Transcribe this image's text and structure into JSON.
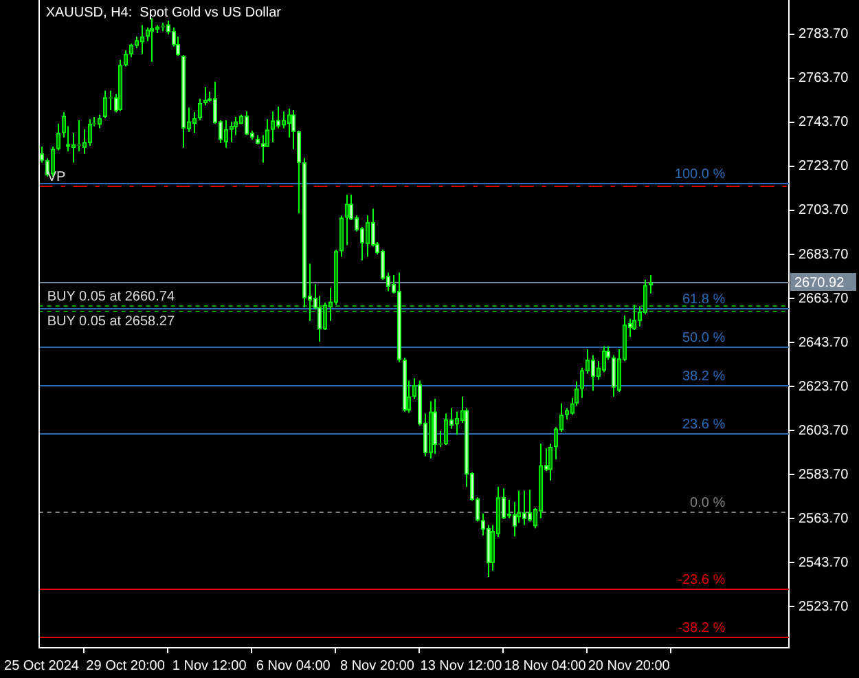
{
  "chart_data": {
    "type": "candlestick",
    "title": "XAUUSD, H4:  Spot Gold vs US Dollar",
    "categories": [
      "25 Oct 2024",
      null,
      null,
      null,
      null,
      null,
      null,
      null,
      null,
      null,
      null,
      null,
      null,
      null,
      null,
      null,
      "29 Oct 20:00",
      null,
      null,
      null,
      null,
      null,
      null,
      null,
      null,
      null,
      null,
      null,
      null,
      null,
      null,
      null,
      "1 Nov 12:00",
      null,
      null,
      null,
      null,
      null,
      null,
      null,
      null,
      null,
      null,
      null,
      null,
      null,
      null,
      null,
      "6 Nov 04:00",
      null,
      null,
      null,
      null,
      null,
      null,
      null,
      null,
      null,
      null,
      null,
      null,
      null,
      null,
      null,
      "8 Nov 20:00",
      null,
      null,
      null,
      null,
      null,
      null,
      null,
      null,
      null,
      null,
      null,
      null,
      null,
      null,
      null,
      "13 Nov 12:00",
      null,
      null,
      null,
      null,
      null,
      null,
      null,
      null,
      null,
      null,
      null,
      null,
      null,
      null,
      null,
      "18 Nov 04:00",
      null,
      null,
      null,
      null,
      null,
      null,
      null,
      null,
      null,
      null,
      null,
      null,
      null,
      null,
      null,
      "20 Nov 20:00",
      null,
      null,
      null,
      null,
      null,
      null,
      null,
      null,
      null,
      null,
      null,
      null,
      null,
      null,
      null,
      null,
      null,
      null,
      null,
      null,
      null,
      null,
      null,
      null,
      null,
      null,
      null,
      null,
      null,
      null
    ],
    "ohlc": [
      [
        2729.5,
        2732.7,
        2725.4,
        2726.4
      ],
      [
        2726.4,
        2727.4,
        2719.1,
        2719.7
      ],
      [
        2720.2,
        2732.7,
        2719.1,
        2731.6
      ],
      [
        2731.6,
        2743.1,
        2731.0,
        2738.9
      ],
      [
        2738.9,
        2748.3,
        2736.8,
        2746.6
      ],
      [
        2733.7,
        2742.0,
        2730.6,
        2732.7
      ],
      [
        2732.2,
        2738.9,
        2725.4,
        2733.7
      ],
      [
        2733.1,
        2744.7,
        2730.6,
        2733.7
      ],
      [
        2732.2,
        2740.6,
        2729.5,
        2734.7
      ],
      [
        2734.3,
        2745.2,
        2733.1,
        2743.1
      ],
      [
        2742.7,
        2746.2,
        2742.0,
        2743.5
      ],
      [
        2742.7,
        2747.2,
        2741.0,
        2745.6
      ],
      [
        2746.2,
        2758.1,
        2745.6,
        2755.0
      ],
      [
        2754.5,
        2758.1,
        2749.3,
        2755.3
      ],
      [
        2755.0,
        2756.6,
        2748.3,
        2748.9
      ],
      [
        2749.3,
        2772.2,
        2748.9,
        2769.7
      ],
      [
        2769.7,
        2776.4,
        2769.1,
        2774.7
      ],
      [
        2774.7,
        2779.5,
        2773.3,
        2778.9
      ],
      [
        2778.5,
        2782.7,
        2777.4,
        2781.0
      ],
      [
        2780.2,
        2787.9,
        2774.7,
        2782.7
      ],
      [
        2782.7,
        2786.8,
        2780.6,
        2785.8
      ],
      [
        2785.0,
        2791.0,
        2771.2,
        2786.4
      ],
      [
        2785.8,
        2787.9,
        2784.3,
        2787.2
      ],
      [
        2786.8,
        2788.9,
        2785.2,
        2787.7
      ],
      [
        2788.1,
        2789.9,
        2783.7,
        2784.7
      ],
      [
        2785.2,
        2786.8,
        2778.1,
        2778.9
      ],
      [
        2779.3,
        2782.7,
        2773.9,
        2774.3
      ],
      [
        2773.9,
        2774.3,
        2732.2,
        2741.0
      ],
      [
        2740.6,
        2750.4,
        2739.3,
        2744.1
      ],
      [
        2743.1,
        2748.3,
        2738.9,
        2745.6
      ],
      [
        2745.6,
        2754.5,
        2744.7,
        2752.4
      ],
      [
        2752.4,
        2759.7,
        2751.4,
        2753.9
      ],
      [
        2753.5,
        2757.7,
        2753.1,
        2754.5
      ],
      [
        2754.5,
        2762.2,
        2743.1,
        2743.5
      ],
      [
        2744.1,
        2744.7,
        2734.3,
        2735.8
      ],
      [
        2734.7,
        2744.7,
        2732.2,
        2740.6
      ],
      [
        2740.4,
        2744.1,
        2734.7,
        2742.0
      ],
      [
        2741.6,
        2746.2,
        2737.9,
        2744.1
      ],
      [
        2743.1,
        2747.2,
        2742.9,
        2746.6
      ],
      [
        2746.6,
        2748.7,
        2737.9,
        2738.3
      ],
      [
        2738.9,
        2739.9,
        2735.8,
        2736.8
      ],
      [
        2736.2,
        2737.9,
        2733.7,
        2734.1
      ],
      [
        2734.1,
        2737.9,
        2725.4,
        2732.6
      ],
      [
        2732.6,
        2745.2,
        2732.6,
        2740.4
      ],
      [
        2740.4,
        2748.7,
        2734.7,
        2744.5
      ],
      [
        2744.7,
        2750.8,
        2741.0,
        2742.0
      ],
      [
        2742.4,
        2748.7,
        2741.0,
        2744.7
      ],
      [
        2743.1,
        2749.9,
        2736.8,
        2747.2
      ],
      [
        2747.2,
        2749.3,
        2731.6,
        2739.5
      ],
      [
        2739.5,
        2739.9,
        2702.4,
        2725.4
      ],
      [
        2725.4,
        2727.5,
        2659.7,
        2663.9
      ],
      [
        2664.9,
        2679.5,
        2653.5,
        2662.9
      ],
      [
        2663.9,
        2670.2,
        2658.7,
        2659.3
      ],
      [
        2659.7,
        2664.9,
        2644.1,
        2649.7
      ],
      [
        2649.7,
        2661.8,
        2649.3,
        2660.8
      ],
      [
        2659.7,
        2668.5,
        2653.5,
        2662.2
      ],
      [
        2661.8,
        2685.8,
        2660.8,
        2685.2
      ],
      [
        2685.2,
        2701.4,
        2682.7,
        2700.4
      ],
      [
        2700.4,
        2710.8,
        2687.9,
        2706.6
      ],
      [
        2706.6,
        2710.8,
        2699.3,
        2699.7
      ],
      [
        2700.4,
        2701.4,
        2694.1,
        2694.7
      ],
      [
        2695.6,
        2696.2,
        2681.0,
        2688.9
      ],
      [
        2688.5,
        2701.4,
        2682.7,
        2698.3
      ],
      [
        2698.3,
        2704.5,
        2687.3,
        2687.9
      ],
      [
        2688.5,
        2689.3,
        2683.7,
        2684.3
      ],
      [
        2685.2,
        2685.8,
        2672.2,
        2672.7
      ],
      [
        2673.9,
        2675.4,
        2667.0,
        2669.1
      ],
      [
        2670.2,
        2674.3,
        2666.0,
        2666.4
      ],
      [
        2667.0,
        2675.4,
        2634.7,
        2635.8
      ],
      [
        2635.8,
        2636.8,
        2612.2,
        2612.9
      ],
      [
        2612.9,
        2626.4,
        2611.8,
        2619.1
      ],
      [
        2619.1,
        2627.5,
        2618.1,
        2624.3
      ],
      [
        2624.7,
        2626.4,
        2606.0,
        2606.6
      ],
      [
        2607.2,
        2611.4,
        2592.0,
        2593.5
      ],
      [
        2593.5,
        2617.0,
        2591.0,
        2612.2
      ],
      [
        2612.2,
        2618.1,
        2593.1,
        2597.2
      ],
      [
        2597.2,
        2603.5,
        2596.2,
        2598.0
      ],
      [
        2597.6,
        2611.4,
        2597.2,
        2608.7
      ],
      [
        2608.7,
        2613.9,
        2604.5,
        2606.0
      ],
      [
        2606.6,
        2612.2,
        2601.8,
        2609.3
      ],
      [
        2608.1,
        2619.1,
        2607.2,
        2612.9
      ],
      [
        2612.9,
        2613.9,
        2578.1,
        2583.7
      ],
      [
        2584.3,
        2584.7,
        2571.8,
        2572.2
      ],
      [
        2572.7,
        2573.3,
        2562.3,
        2562.9
      ],
      [
        2562.9,
        2566.0,
        2556.0,
        2558.7
      ],
      [
        2559.3,
        2560.8,
        2537.2,
        2543.5
      ],
      [
        2543.5,
        2560.8,
        2540.0,
        2558.1
      ],
      [
        2556.6,
        2578.1,
        2555.2,
        2573.3
      ],
      [
        2573.3,
        2577.4,
        2563.5,
        2563.9
      ],
      [
        2564.9,
        2572.2,
        2563.9,
        2565.9
      ],
      [
        2565.6,
        2571.2,
        2555.6,
        2560.2
      ],
      [
        2564.3,
        2576.4,
        2561.8,
        2566.4
      ],
      [
        2566.4,
        2576.4,
        2560.8,
        2563.5
      ],
      [
        2566.4,
        2576.8,
        2562.3,
        2562.9
      ],
      [
        2560.2,
        2568.5,
        2559.3,
        2568.1
      ],
      [
        2567.0,
        2597.7,
        2563.9,
        2587.9
      ],
      [
        2587.9,
        2595.6,
        2585.2,
        2585.8
      ],
      [
        2585.8,
        2597.7,
        2581.0,
        2596.2
      ],
      [
        2596.2,
        2605.2,
        2590.6,
        2604.5
      ],
      [
        2603.9,
        2616.0,
        2603.1,
        2610.8
      ],
      [
        2610.8,
        2613.9,
        2608.7,
        2612.9
      ],
      [
        2611.4,
        2618.5,
        2610.8,
        2616.0
      ],
      [
        2616.0,
        2626.0,
        2614.9,
        2622.7
      ],
      [
        2622.7,
        2632.2,
        2618.5,
        2631.0
      ],
      [
        2630.6,
        2640.6,
        2629.5,
        2635.8
      ],
      [
        2635.8,
        2637.9,
        2621.8,
        2628.1
      ],
      [
        2628.1,
        2635.2,
        2626.8,
        2632.2
      ],
      [
        2631.0,
        2642.0,
        2630.2,
        2639.9
      ],
      [
        2639.9,
        2642.0,
        2635.8,
        2636.8
      ],
      [
        2636.8,
        2637.9,
        2619.1,
        2623.3
      ],
      [
        2621.8,
        2640.6,
        2621.2,
        2636.4
      ],
      [
        2635.8,
        2656.0,
        2635.2,
        2651.8
      ],
      [
        2652.5,
        2654.5,
        2646.2,
        2650.4
      ],
      [
        2649.7,
        2660.8,
        2649.3,
        2653.9
      ],
      [
        2653.5,
        2660.2,
        2651.0,
        2657.7
      ],
      [
        2657.2,
        2672.2,
        2656.6,
        2669.7
      ],
      [
        2669.7,
        2674.3,
        2666.0,
        2670.9
      ],
      null,
      null,
      null,
      null,
      null,
      null,
      null,
      null,
      null,
      null,
      null,
      null,
      null,
      null,
      null,
      null,
      null,
      null,
      null,
      null,
      null,
      null,
      null,
      null,
      null,
      null
    ],
    "colors": [
      "#ccffcc",
      "#ccffcc",
      "#008000",
      "#008000",
      "#008000",
      "#ccffcc",
      "#008000",
      "#008000",
      "#008000",
      "#008000",
      "#008000",
      "#008000",
      "#008000",
      "#008000",
      "#ccffcc",
      "#008000",
      "#008000",
      "#008000",
      "#008000",
      "#008000",
      "#008000",
      "#008000",
      "#008000",
      "#008000",
      "#ccffcc",
      "#ccffcc",
      "#ccffcc",
      "#ccffcc",
      "#008000",
      "#008000",
      "#008000",
      "#008000",
      "#008000",
      "#ccffcc",
      "#ccffcc",
      "#008000",
      "#008000",
      "#008000",
      "#008000",
      "#ccffcc",
      "#ccffcc",
      "#ccffcc",
      "#ccffcc",
      "#008000",
      "#008000",
      "#ccffcc",
      "#008000",
      "#008000",
      "#ccffcc",
      "#ccffcc",
      "#ccffcc",
      "#ccffcc",
      "#ccffcc",
      "#ccffcc",
      "#008000",
      "#008000",
      "#008000",
      "#008000",
      "#008000",
      "#ccffcc",
      "#ccffcc",
      "#ccffcc",
      "#008000",
      "#ccffcc",
      "#ccffcc",
      "#ccffcc",
      "#ccffcc",
      "#ccffcc",
      "#ccffcc",
      "#ccffcc",
      "#008000",
      "#008000",
      "#ccffcc",
      "#ccffcc",
      "#008000",
      "#ccffcc",
      "#008000",
      "#008000",
      "#ccffcc",
      "#008000",
      "#008000",
      "#ccffcc",
      "#ccffcc",
      "#ccffcc",
      "#ccffcc",
      "#ccffcc",
      "#008000",
      "#008000",
      "#ccffcc",
      "#008000",
      "#ccffcc",
      "#008000",
      "#ccffcc",
      "#ccffcc",
      "#008000",
      "#008000",
      "#ccffcc",
      "#008000",
      "#008000",
      "#008000",
      "#008000",
      "#008000",
      "#008000",
      "#008000",
      "#008000",
      "#ccffcc",
      "#008000",
      "#008000",
      "#ccffcc",
      "#ccffcc",
      "#008000",
      "#008000",
      "#ccffcc",
      "#008000",
      "#008000",
      "#008000",
      "#008000",
      null,
      null,
      null,
      null,
      null,
      null,
      null,
      null,
      null,
      null,
      null,
      null,
      null,
      null,
      null,
      null,
      null,
      null,
      null,
      null,
      null,
      null,
      null,
      null,
      null,
      null
    ],
    "ylim": [
      2505.0,
      2799.3
    ],
    "yticks": [
      {
        "value": 2523.7,
        "label": "2523.70"
      },
      {
        "value": 2543.7,
        "label": "2543.70"
      },
      {
        "value": 2563.7,
        "label": "2563.70"
      },
      {
        "value": 2583.7,
        "label": "2583.70"
      },
      {
        "value": 2603.7,
        "label": "2603.70"
      },
      {
        "value": 2623.7,
        "label": "2623.70"
      },
      {
        "value": 2643.7,
        "label": "2643.70"
      },
      {
        "value": 2663.7,
        "label": "2663.70"
      },
      {
        "value": 2683.7,
        "label": "2683.70"
      },
      {
        "value": 2703.7,
        "label": "2703.70"
      },
      {
        "value": 2723.7,
        "label": "2723.70"
      },
      {
        "value": 2743.7,
        "label": "2743.70"
      },
      {
        "value": 2763.7,
        "label": "2763.70"
      },
      {
        "value": 2783.7,
        "label": "2783.70"
      }
    ],
    "ref_lines": [
      {
        "axis": "y",
        "value": 2716.4,
        "color": "#2b6cb8",
        "line_style": "solid"
      },
      {
        "axis": "y",
        "value": 2659.3,
        "color": "#2b6cb8",
        "line_style": "solid"
      },
      {
        "axis": "y",
        "value": 2641.7,
        "color": "#2b6cb8",
        "line_style": "solid"
      },
      {
        "axis": "y",
        "value": 2624.1,
        "color": "#2b6cb8",
        "line_style": "solid"
      },
      {
        "axis": "y",
        "value": 2602.3,
        "color": "#2b6cb8",
        "line_style": "solid"
      },
      {
        "axis": "y",
        "value": 2567.0,
        "color": "#808080",
        "line_style": "dotted"
      },
      {
        "axis": "y",
        "value": 2531.7,
        "color": "#e00000",
        "line_style": "solid"
      },
      {
        "axis": "y",
        "value": 2509.9,
        "color": "#e00000",
        "line_style": "solid"
      },
      {
        "axis": "y",
        "value": 2715.2,
        "label": "VP",
        "color": "#e00000",
        "line_style": "dashed"
      },
      {
        "axis": "y",
        "value": 2660.74,
        "label": "BUY 0.05 at 2660.74",
        "color": "#00a000",
        "line_style": "dotted"
      },
      {
        "axis": "y",
        "value": 2658.27,
        "label": "BUY 0.05 at 2658.27",
        "color": "#00a000",
        "line_style": "dotted"
      },
      {
        "axis": "y",
        "value": 2670.92,
        "label": "2670.92",
        "color": "#778899",
        "line_style": "solid"
      }
    ],
    "annotations": [
      {
        "text": "100.0 %",
        "y": 2716.4
      },
      {
        "text": "61.8 %",
        "y": 2659.3
      },
      {
        "text": "50.0 %",
        "y": 2641.7
      },
      {
        "text": "38.2 %",
        "y": 2624.1
      },
      {
        "text": "23.6 %",
        "y": 2602.3
      },
      {
        "text": "0.0 %",
        "y": 2567.0
      },
      {
        "text": "-23.6 %",
        "y": 2531.7
      },
      {
        "text": "-38.2 %",
        "y": 2509.9
      }
    ]
  }
}
